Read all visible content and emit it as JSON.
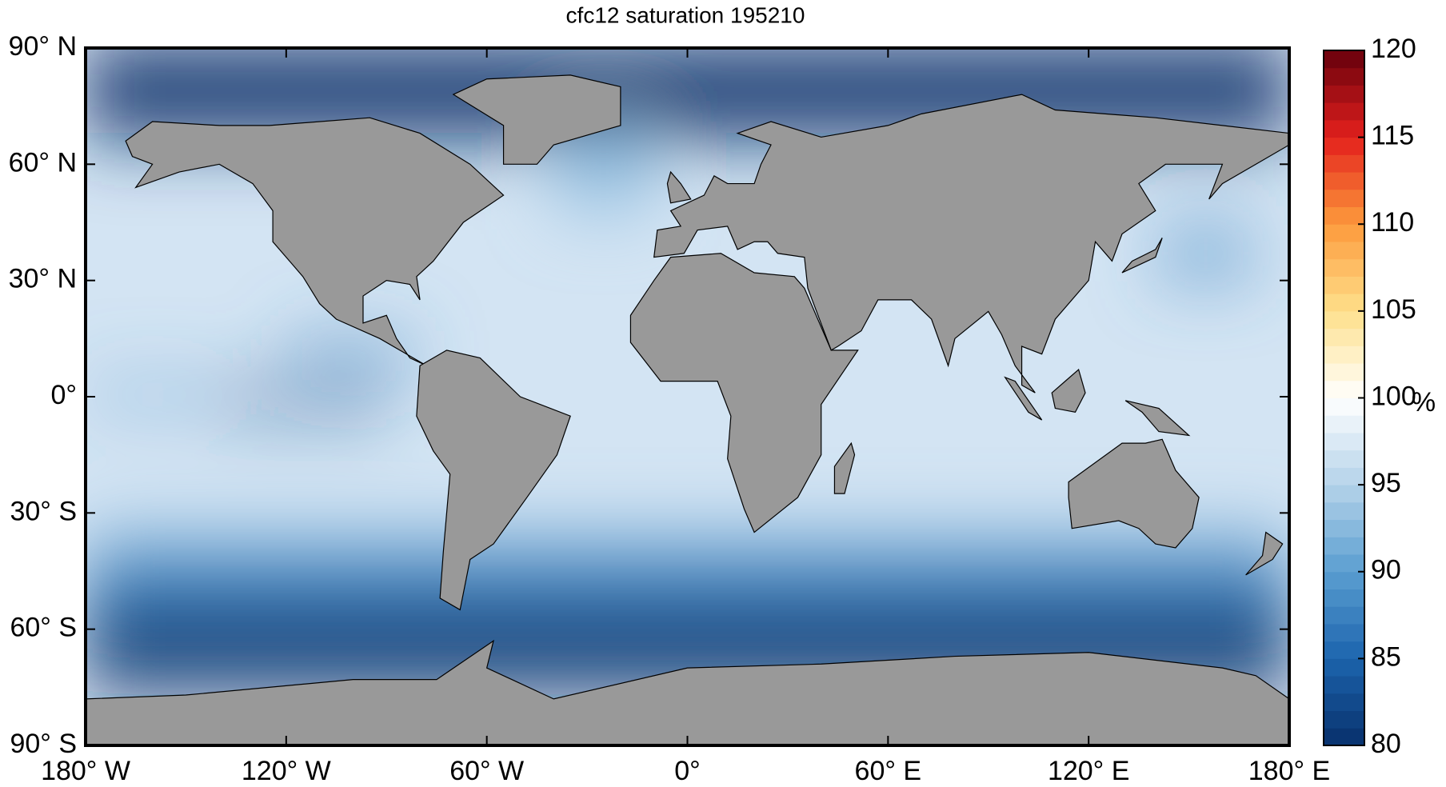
{
  "chart_data": {
    "type": "map",
    "title": "cfc12 saturation 195210",
    "xlim": [
      -180,
      180
    ],
    "xticks": [
      {
        "value": -180,
        "label": "180° W"
      },
      {
        "value": -120,
        "label": "120° W"
      },
      {
        "value": -60,
        "label": "60° W"
      },
      {
        "value": 0,
        "label": "0°"
      },
      {
        "value": 60,
        "label": "60° E"
      },
      {
        "value": 120,
        "label": "120° E"
      },
      {
        "value": 180,
        "label": "180° E"
      }
    ],
    "ylim": [
      -90,
      90
    ],
    "yticks": [
      {
        "value": 90,
        "label": "90° N"
      },
      {
        "value": 60,
        "label": "60° N"
      },
      {
        "value": 30,
        "label": "30° N"
      },
      {
        "value": 0,
        "label": "0°"
      },
      {
        "value": -30,
        "label": "30° S"
      },
      {
        "value": -60,
        "label": "60° S"
      },
      {
        "value": -90,
        "label": "90° S"
      }
    ],
    "colorbar": {
      "label": "%",
      "lim": [
        80,
        120
      ],
      "ticks": [
        80,
        85,
        90,
        95,
        100,
        105,
        110,
        115,
        120
      ],
      "colormap": [
        "#08306b",
        "#1c64ad",
        "#5a9ed0",
        "#b5d3ea",
        "#ffffff",
        "#fee08b",
        "#fd9a3c",
        "#e3201c",
        "#67000d"
      ]
    }
  }
}
